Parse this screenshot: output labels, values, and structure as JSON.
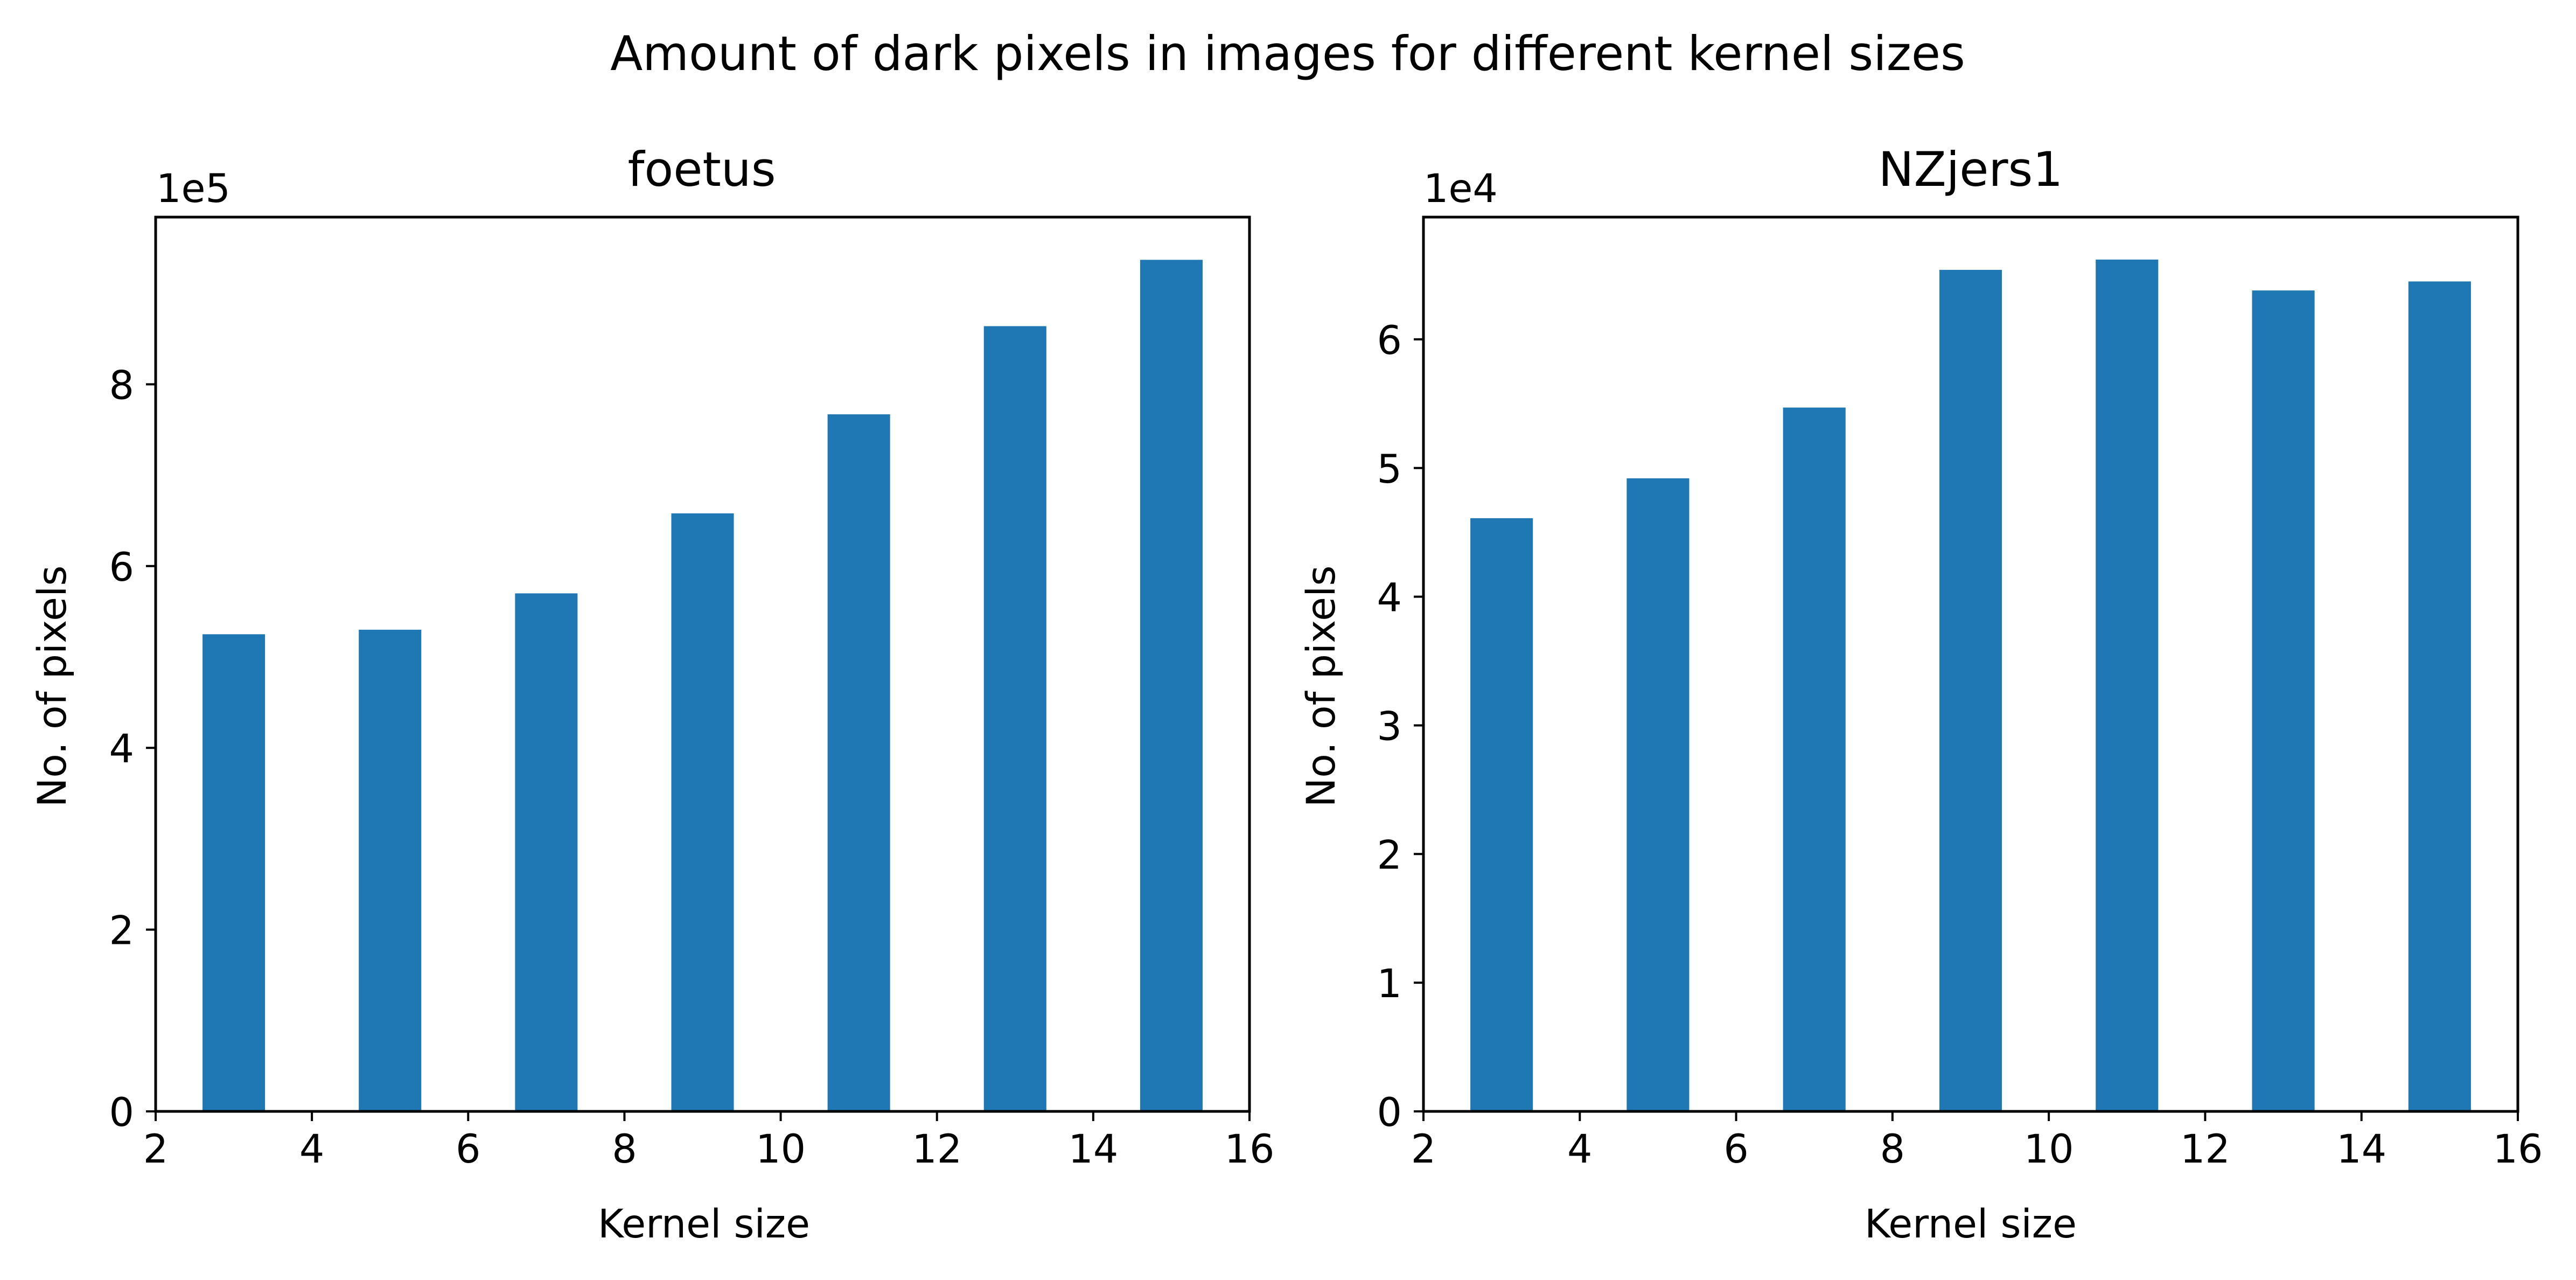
{
  "figure": {
    "suptitle": "Amount of dark pixels in images for different kernel sizes"
  },
  "chart_data": [
    {
      "type": "bar",
      "title": "foetus",
      "xlabel": "Kernel size",
      "ylabel": "No. of pixels",
      "offset_text": "1e5",
      "x": [
        3,
        5,
        7,
        9,
        11,
        13,
        15
      ],
      "values": [
        525000,
        530000,
        570000,
        658000,
        767000,
        864000,
        937000
      ],
      "bar_width": 0.8,
      "color": "#1f77b4",
      "xlim": [
        2,
        16
      ],
      "ylim": [
        0,
        984000
      ],
      "xticks": [
        2,
        4,
        6,
        8,
        10,
        12,
        14,
        16
      ],
      "yticks": [
        0,
        2,
        4,
        6,
        8
      ],
      "ytick_scale": 100000,
      "grid": false
    },
    {
      "type": "bar",
      "title": "NZjers1",
      "xlabel": "Kernel size",
      "ylabel": "No. of pixels",
      "offset_text": "1e4",
      "x": [
        3,
        5,
        7,
        9,
        11,
        13,
        15
      ],
      "values": [
        46100,
        49200,
        54700,
        65400,
        66200,
        63800,
        64500
      ],
      "bar_width": 0.8,
      "color": "#1f77b4",
      "xlim": [
        2,
        16
      ],
      "ylim": [
        0,
        69500
      ],
      "xticks": [
        2,
        4,
        6,
        8,
        10,
        12,
        14,
        16
      ],
      "yticks": [
        0,
        1,
        2,
        3,
        4,
        5,
        6
      ],
      "ytick_scale": 10000,
      "grid": false
    }
  ]
}
